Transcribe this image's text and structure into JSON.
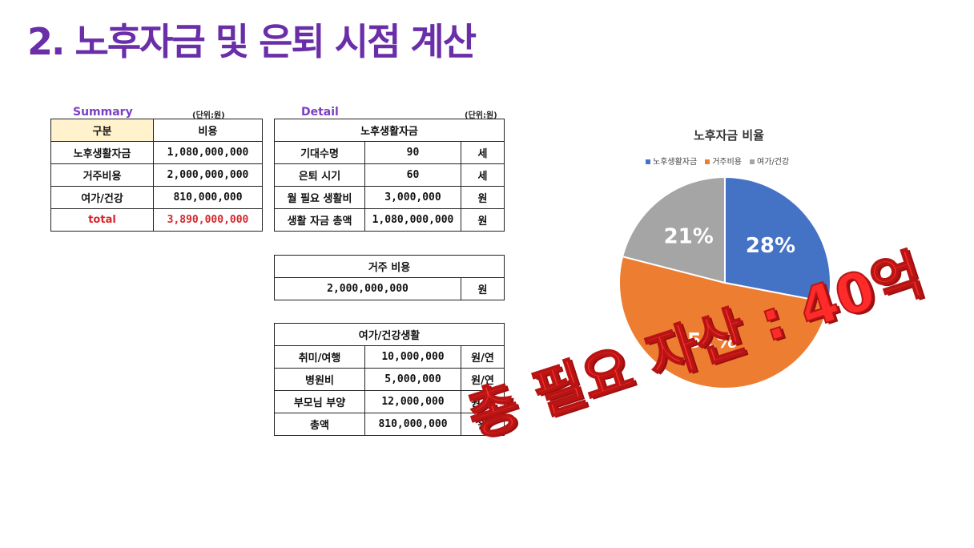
{
  "title": "2. 노후자금 및 은퇴 시점 계산",
  "summary": {
    "caption": "Summary",
    "unit": "(단위:원)",
    "header": [
      "구분",
      "비용"
    ],
    "rows": [
      {
        "label": "노후생활자금",
        "value": "1,080,000,000"
      },
      {
        "label": "거주비용",
        "value": "2,000,000,000"
      },
      {
        "label": "여가/건강",
        "value": "810,000,000"
      }
    ],
    "total": {
      "label": "total",
      "value": "3,890,000,000"
    }
  },
  "detail": {
    "caption": "Detail",
    "unit": "(단위:원)",
    "retire": {
      "header": "노후생활자금",
      "rows": [
        {
          "label": "기대수명",
          "value": "90",
          "unit": "세"
        },
        {
          "label": "은퇴 시기",
          "value": "60",
          "unit": "세"
        },
        {
          "label": "월 필요 생활비",
          "value": "3,000,000",
          "unit": "원"
        },
        {
          "label": "생활 자금 총액",
          "value": "1,080,000,000",
          "unit": "원"
        }
      ]
    },
    "housing": {
      "header": "거주 비용",
      "value": "2,000,000,000",
      "unit": "원"
    },
    "leisure": {
      "header": "여가/건강생활",
      "rows": [
        {
          "label": "취미/여행",
          "value": "10,000,000",
          "unit": "원/연"
        },
        {
          "label": "병원비",
          "value": "5,000,000",
          "unit": "원/연"
        },
        {
          "label": "부모님 부양",
          "value": "12,000,000",
          "unit": "원/연"
        },
        {
          "label": "총액",
          "value": "810,000,000",
          "unit": "원"
        }
      ]
    }
  },
  "chart_data": {
    "type": "pie",
    "title": "노후자금 비율",
    "legend_position": "top",
    "categories": [
      "노후생활자금",
      "거주비용",
      "여가/건강"
    ],
    "values": [
      28,
      51,
      21
    ],
    "labels": [
      "28%",
      "51%",
      "21%"
    ],
    "colors": [
      "#4472c4",
      "#ed7d31",
      "#a5a5a5"
    ]
  },
  "stamp": "총 필요 자산 : 40억"
}
